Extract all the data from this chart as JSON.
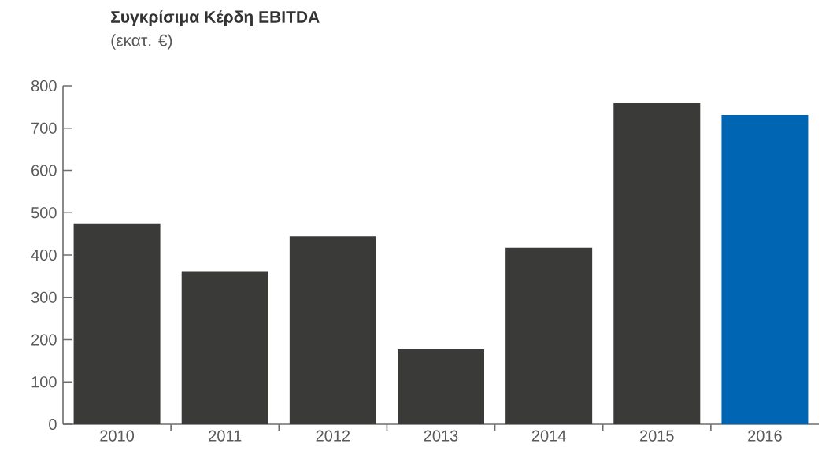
{
  "chart_data": {
    "type": "bar",
    "title": "Συγκρίσιμα Κέρδη EBITDA",
    "subtitle": "(εκατ. €)",
    "categories": [
      "2010",
      "2011",
      "2012",
      "2013",
      "2014",
      "2015",
      "2016"
    ],
    "values": [
      475,
      362,
      444,
      177,
      417,
      759,
      731
    ],
    "colors": [
      "#3a3a39",
      "#3a3a39",
      "#3a3a39",
      "#3a3a39",
      "#3a3a39",
      "#3a3a39",
      "#0066b3"
    ],
    "ylim": [
      0,
      800
    ],
    "yticks": [
      0,
      100,
      200,
      300,
      400,
      500,
      600,
      700,
      800
    ]
  }
}
